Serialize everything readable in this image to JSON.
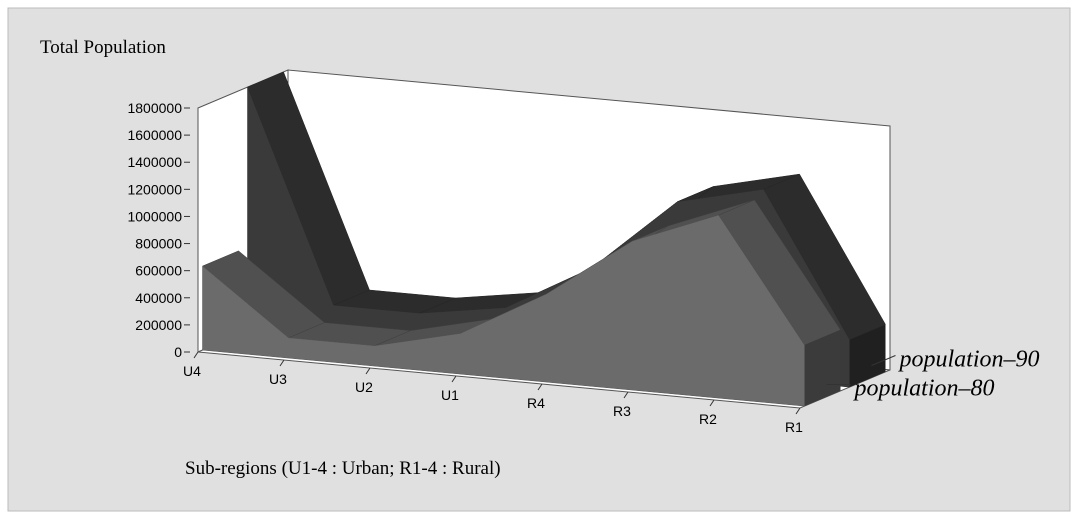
{
  "chart_data": {
    "type": "area3d",
    "y_axis_title": "Total Population",
    "x_axis_title": "Sub-regions (U1-4 : Urban; R1-4 : Rural)",
    "categories": [
      "U4",
      "U3",
      "U2",
      "U1",
      "R4",
      "R3",
      "R2",
      "R1"
    ],
    "series": [
      {
        "name": "population–80",
        "color": "#6b6b6b",
        "values": [
          620000,
          150000,
          150000,
          300000,
          650000,
          1100000,
          1350000,
          450000
        ]
      },
      {
        "name": "population–90",
        "color": "#3a3a3a",
        "values": [
          1800000,
          250000,
          250000,
          350000,
          700000,
          1250000,
          1400000,
          350000
        ]
      }
    ],
    "ylim": [
      0,
      1800000
    ],
    "yticks": [
      0,
      200000,
      400000,
      600000,
      800000,
      1000000,
      1200000,
      1400000,
      1600000,
      1800000
    ]
  }
}
